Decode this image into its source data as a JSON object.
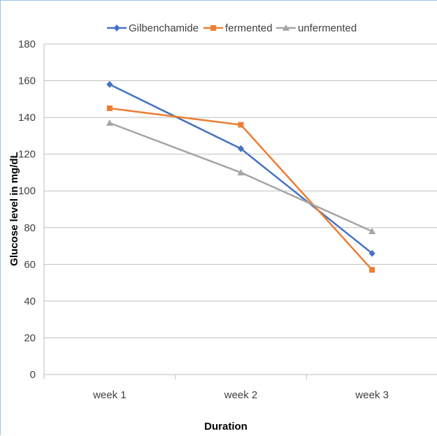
{
  "chart_data": {
    "type": "line",
    "categories": [
      "week 1",
      "week 2",
      "week 3"
    ],
    "series": [
      {
        "name": "Gilbenchamide",
        "values": [
          158,
          123,
          66
        ],
        "color": "#4472c4",
        "marker": "diamond"
      },
      {
        "name": "fermented",
        "values": [
          145,
          136,
          57
        ],
        "color": "#ed7d31",
        "marker": "square"
      },
      {
        "name": "unfermented",
        "values": [
          137,
          110,
          78
        ],
        "color": "#a5a5a5",
        "marker": "triangle"
      }
    ],
    "xlabel": "Duration",
    "ylabel": "Glucose level in mg/dL",
    "ylim": [
      0,
      180
    ],
    "yticks": [
      "0",
      "20",
      "40",
      "60",
      "80",
      "100",
      "120",
      "140",
      "160",
      "180"
    ],
    "grid": true,
    "legend_position": "top"
  }
}
